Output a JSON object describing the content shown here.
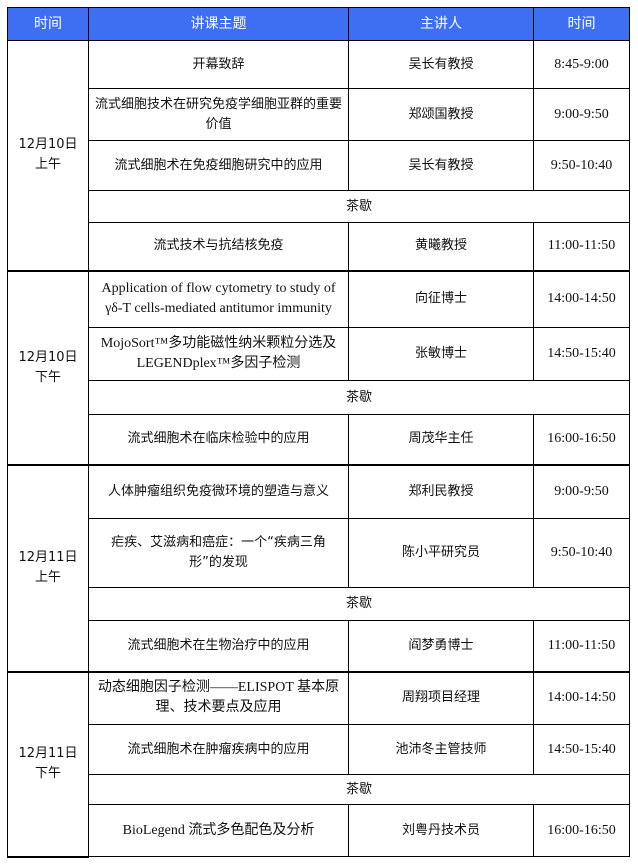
{
  "header": {
    "time": "时间",
    "topic": "讲课主题",
    "speaker": "主讲人",
    "slot": "时间"
  },
  "colors": {
    "header_bg": "#3e6ff2",
    "header_text": "#ffffff"
  },
  "groups": [
    {
      "label_date": "12月10日",
      "label_period": "上午",
      "rows": [
        {
          "topic": "开幕致辞",
          "speaker": "吴长有教授",
          "time": "8:45-9:00"
        },
        {
          "topic": "流式细胞技术在研究免疫学细胞亚群的重要价值",
          "speaker": "郑颂国教授",
          "time": "9:00-9:50"
        },
        {
          "topic": "流式细胞术在免疫细胞研究中的应用",
          "speaker": "吴长有教授",
          "time": "9:50-10:40"
        },
        {
          "break": "茶歇"
        },
        {
          "topic": "流式技术与抗结核免疫",
          "speaker": "黄曦教授",
          "time": "11:00-11:50"
        }
      ]
    },
    {
      "label_date": "12月10日",
      "label_period": "下午",
      "rows": [
        {
          "topic": "Application of flow cytometry to study of γδ-T cells-mediated  antitumor immunity",
          "speaker": "向征博士",
          "time": "14:00-14:50"
        },
        {
          "topic": "MojoSort™多功能磁性纳米颗粒分选及LEGENDplex™多因子检测",
          "speaker": "张敏博士",
          "time": "14:50-15:40"
        },
        {
          "break": "茶歇"
        },
        {
          "topic": "流式细胞术在临床检验中的应用",
          "speaker": "周茂华主任",
          "time": "16:00-16:50"
        }
      ]
    },
    {
      "label_date": "12月11日",
      "label_period": "上午",
      "rows": [
        {
          "topic": "人体肿瘤组织免疫微环境的塑造与意义",
          "speaker": "郑利民教授",
          "time": "9:00-9:50"
        },
        {
          "topic": "疟疾、艾滋病和癌症：一个“疾病三角形”的发现",
          "speaker": "陈小平研究员",
          "time": "9:50-10:40"
        },
        {
          "break": "茶歇"
        },
        {
          "topic": "流式细胞术在生物治疗中的应用",
          "speaker": "阎梦勇博士",
          "time": "11:00-11:50"
        }
      ]
    },
    {
      "label_date": "12月11日",
      "label_period": "下午",
      "rows": [
        {
          "topic": "动态细胞因子检测——ELISPOT 基本原理、技术要点及应用",
          "speaker": "周翔项目经理",
          "time": "14:00-14:50"
        },
        {
          "topic": "流式细胞术在肿瘤疾病中的应用",
          "speaker": "池沛冬主管技师",
          "time": "14:50-15:40"
        },
        {
          "break": "茶歇"
        },
        {
          "topic": "BioLegend 流式多色配色及分析",
          "speaker": "刘粤丹技术员",
          "time": "16:00-16:50"
        }
      ]
    }
  ]
}
